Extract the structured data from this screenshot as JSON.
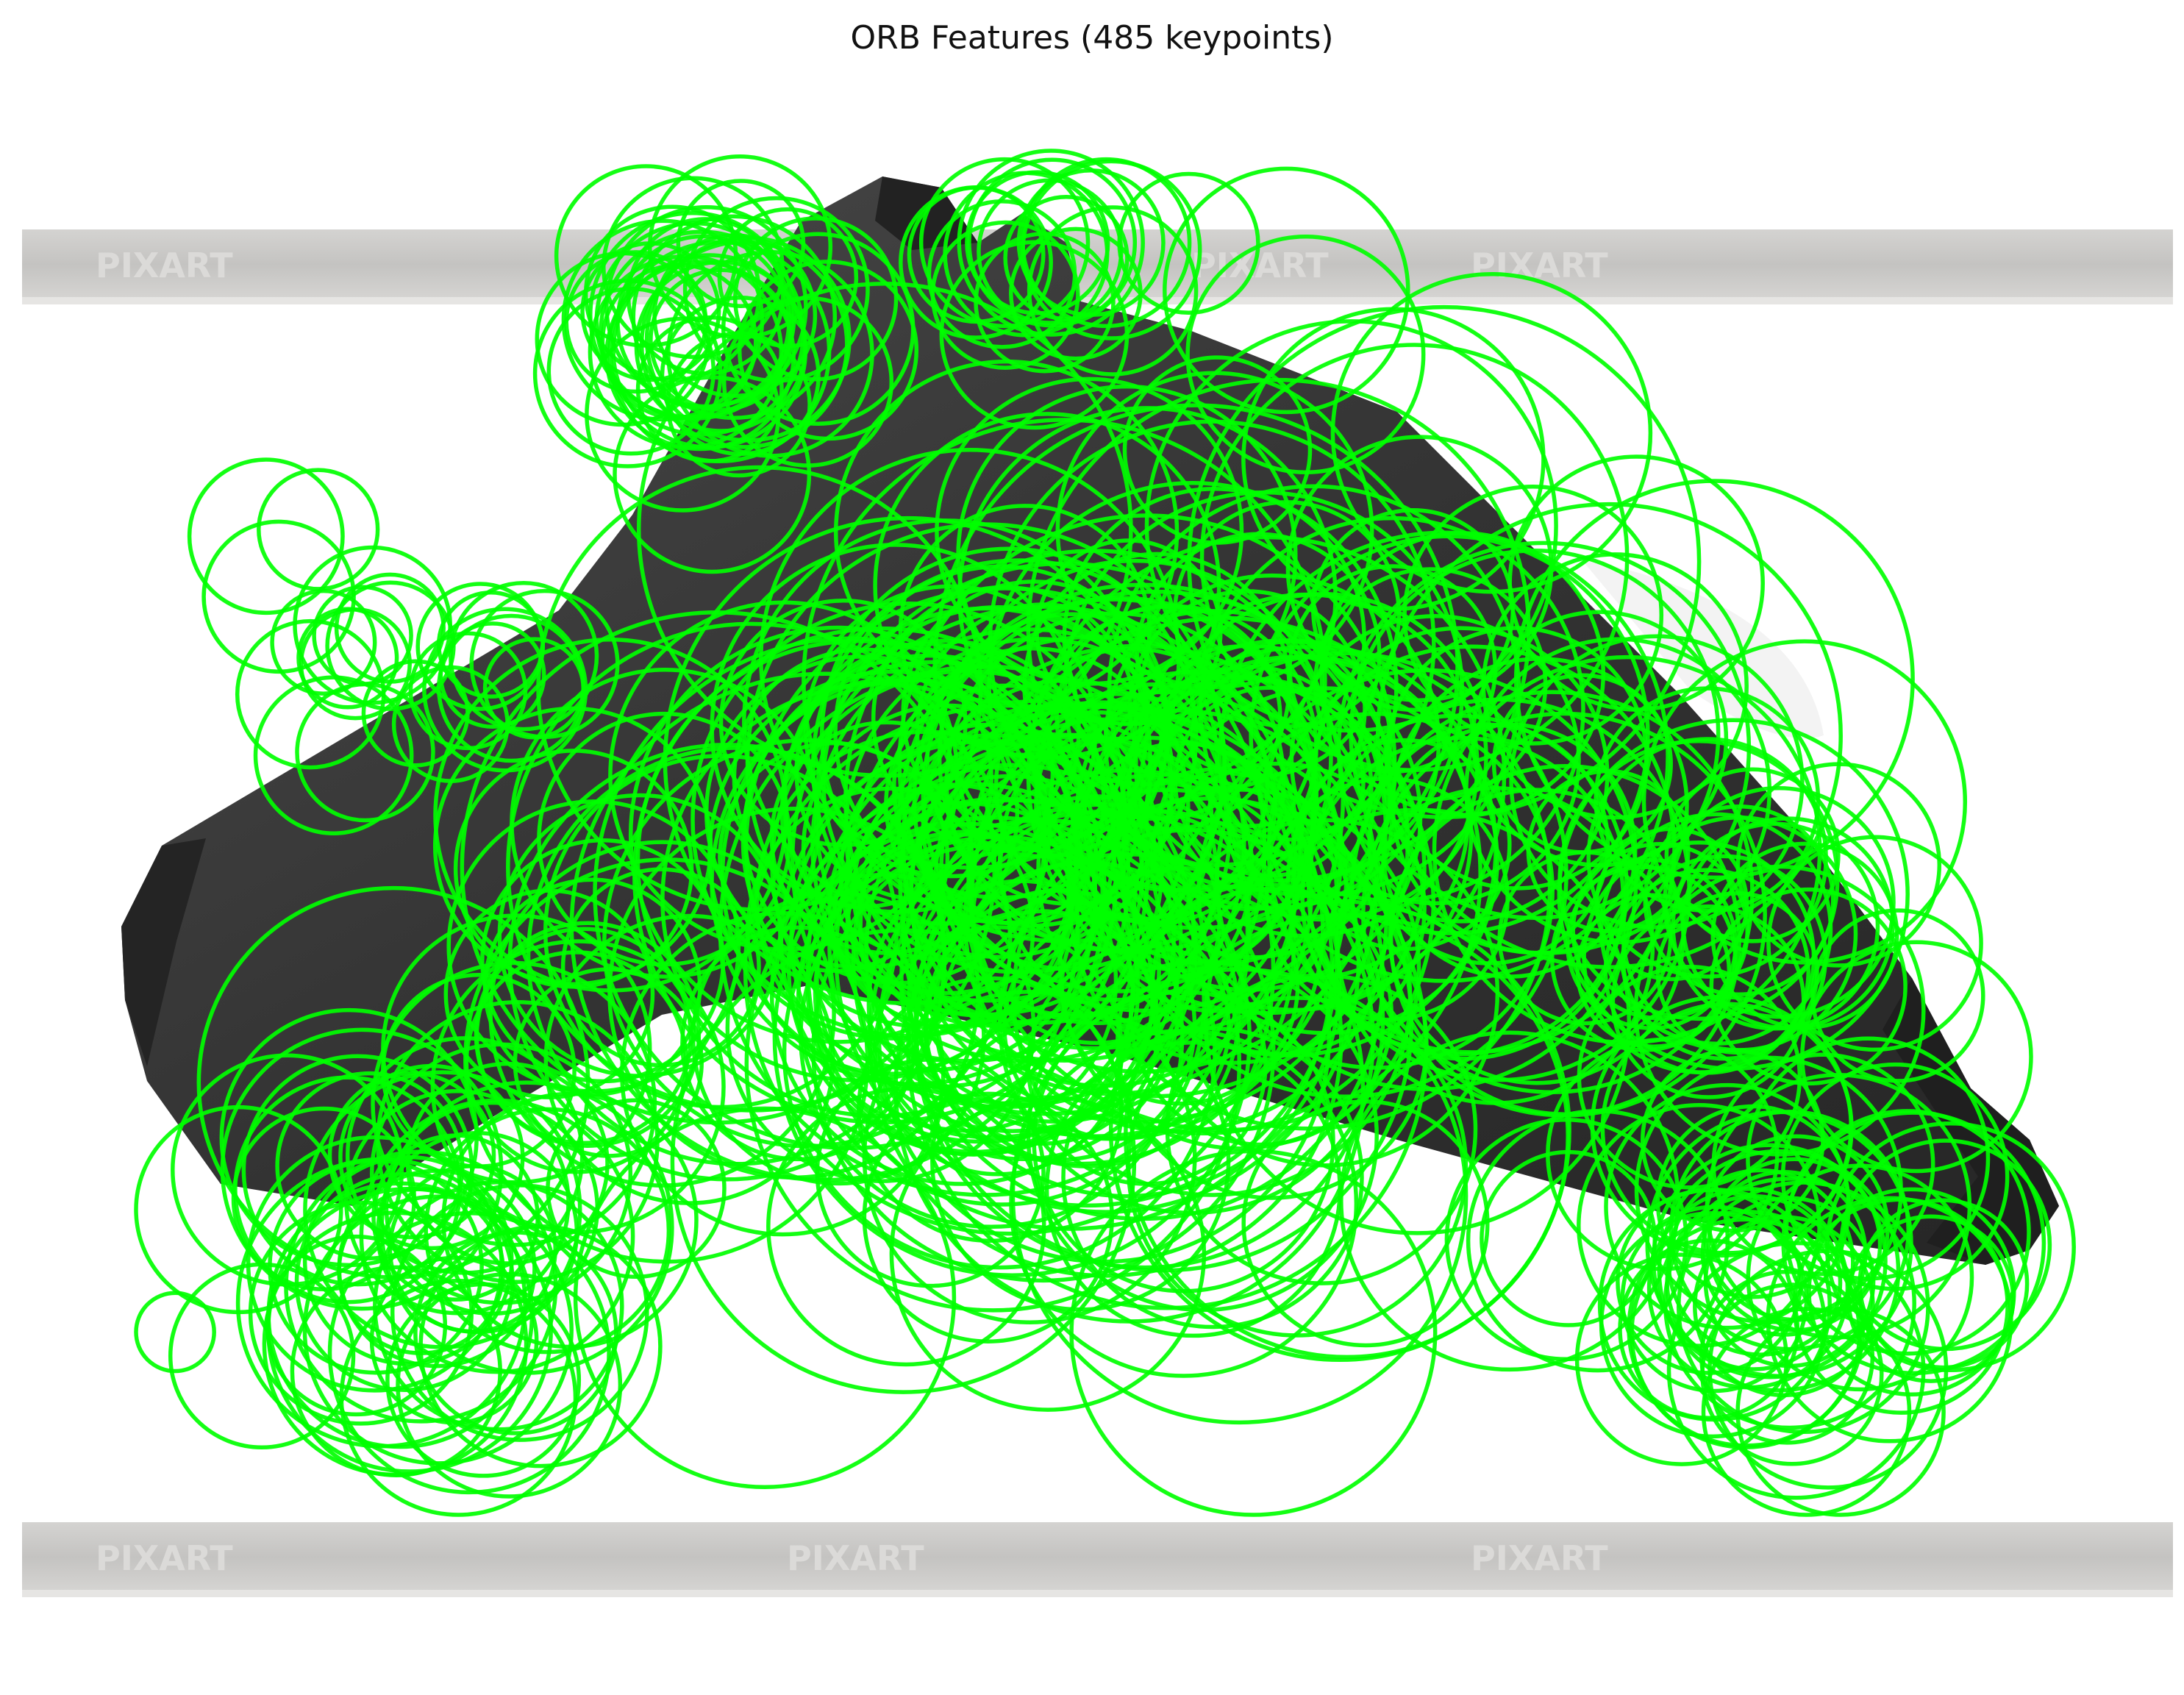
{
  "figure": {
    "title": "ORB Features (485 keypoints)"
  },
  "image_content": {
    "description_colors": {
      "background": "#ffffff",
      "strap": "#c6c5c3",
      "strap_edge": "#e2e1df",
      "product_body": "#3a3a3a",
      "product_shadow": "#1e1e1e",
      "strap_text": "#dddcda"
    },
    "strap_texts": [
      "PIXART",
      "PIXART",
      "PIXART",
      "PIXART",
      "PIXART",
      "PIXART"
    ]
  },
  "keypoints": {
    "count": 485,
    "color": "#00ee00",
    "stroke_color": "#00ff00"
  }
}
